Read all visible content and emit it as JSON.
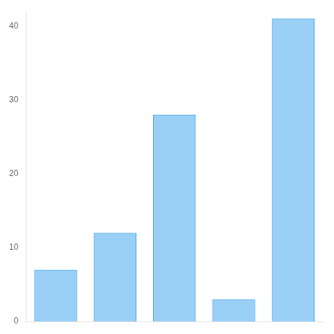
{
  "chart_data": {
    "type": "bar",
    "categories": [
      null,
      null,
      null,
      null,
      null
    ],
    "values": [
      7,
      12,
      28,
      3,
      41
    ],
    "ylim": [
      0,
      42
    ],
    "yticks": [
      0,
      10,
      20,
      30,
      40
    ],
    "grid": false,
    "tick_labels": "y"
  }
}
